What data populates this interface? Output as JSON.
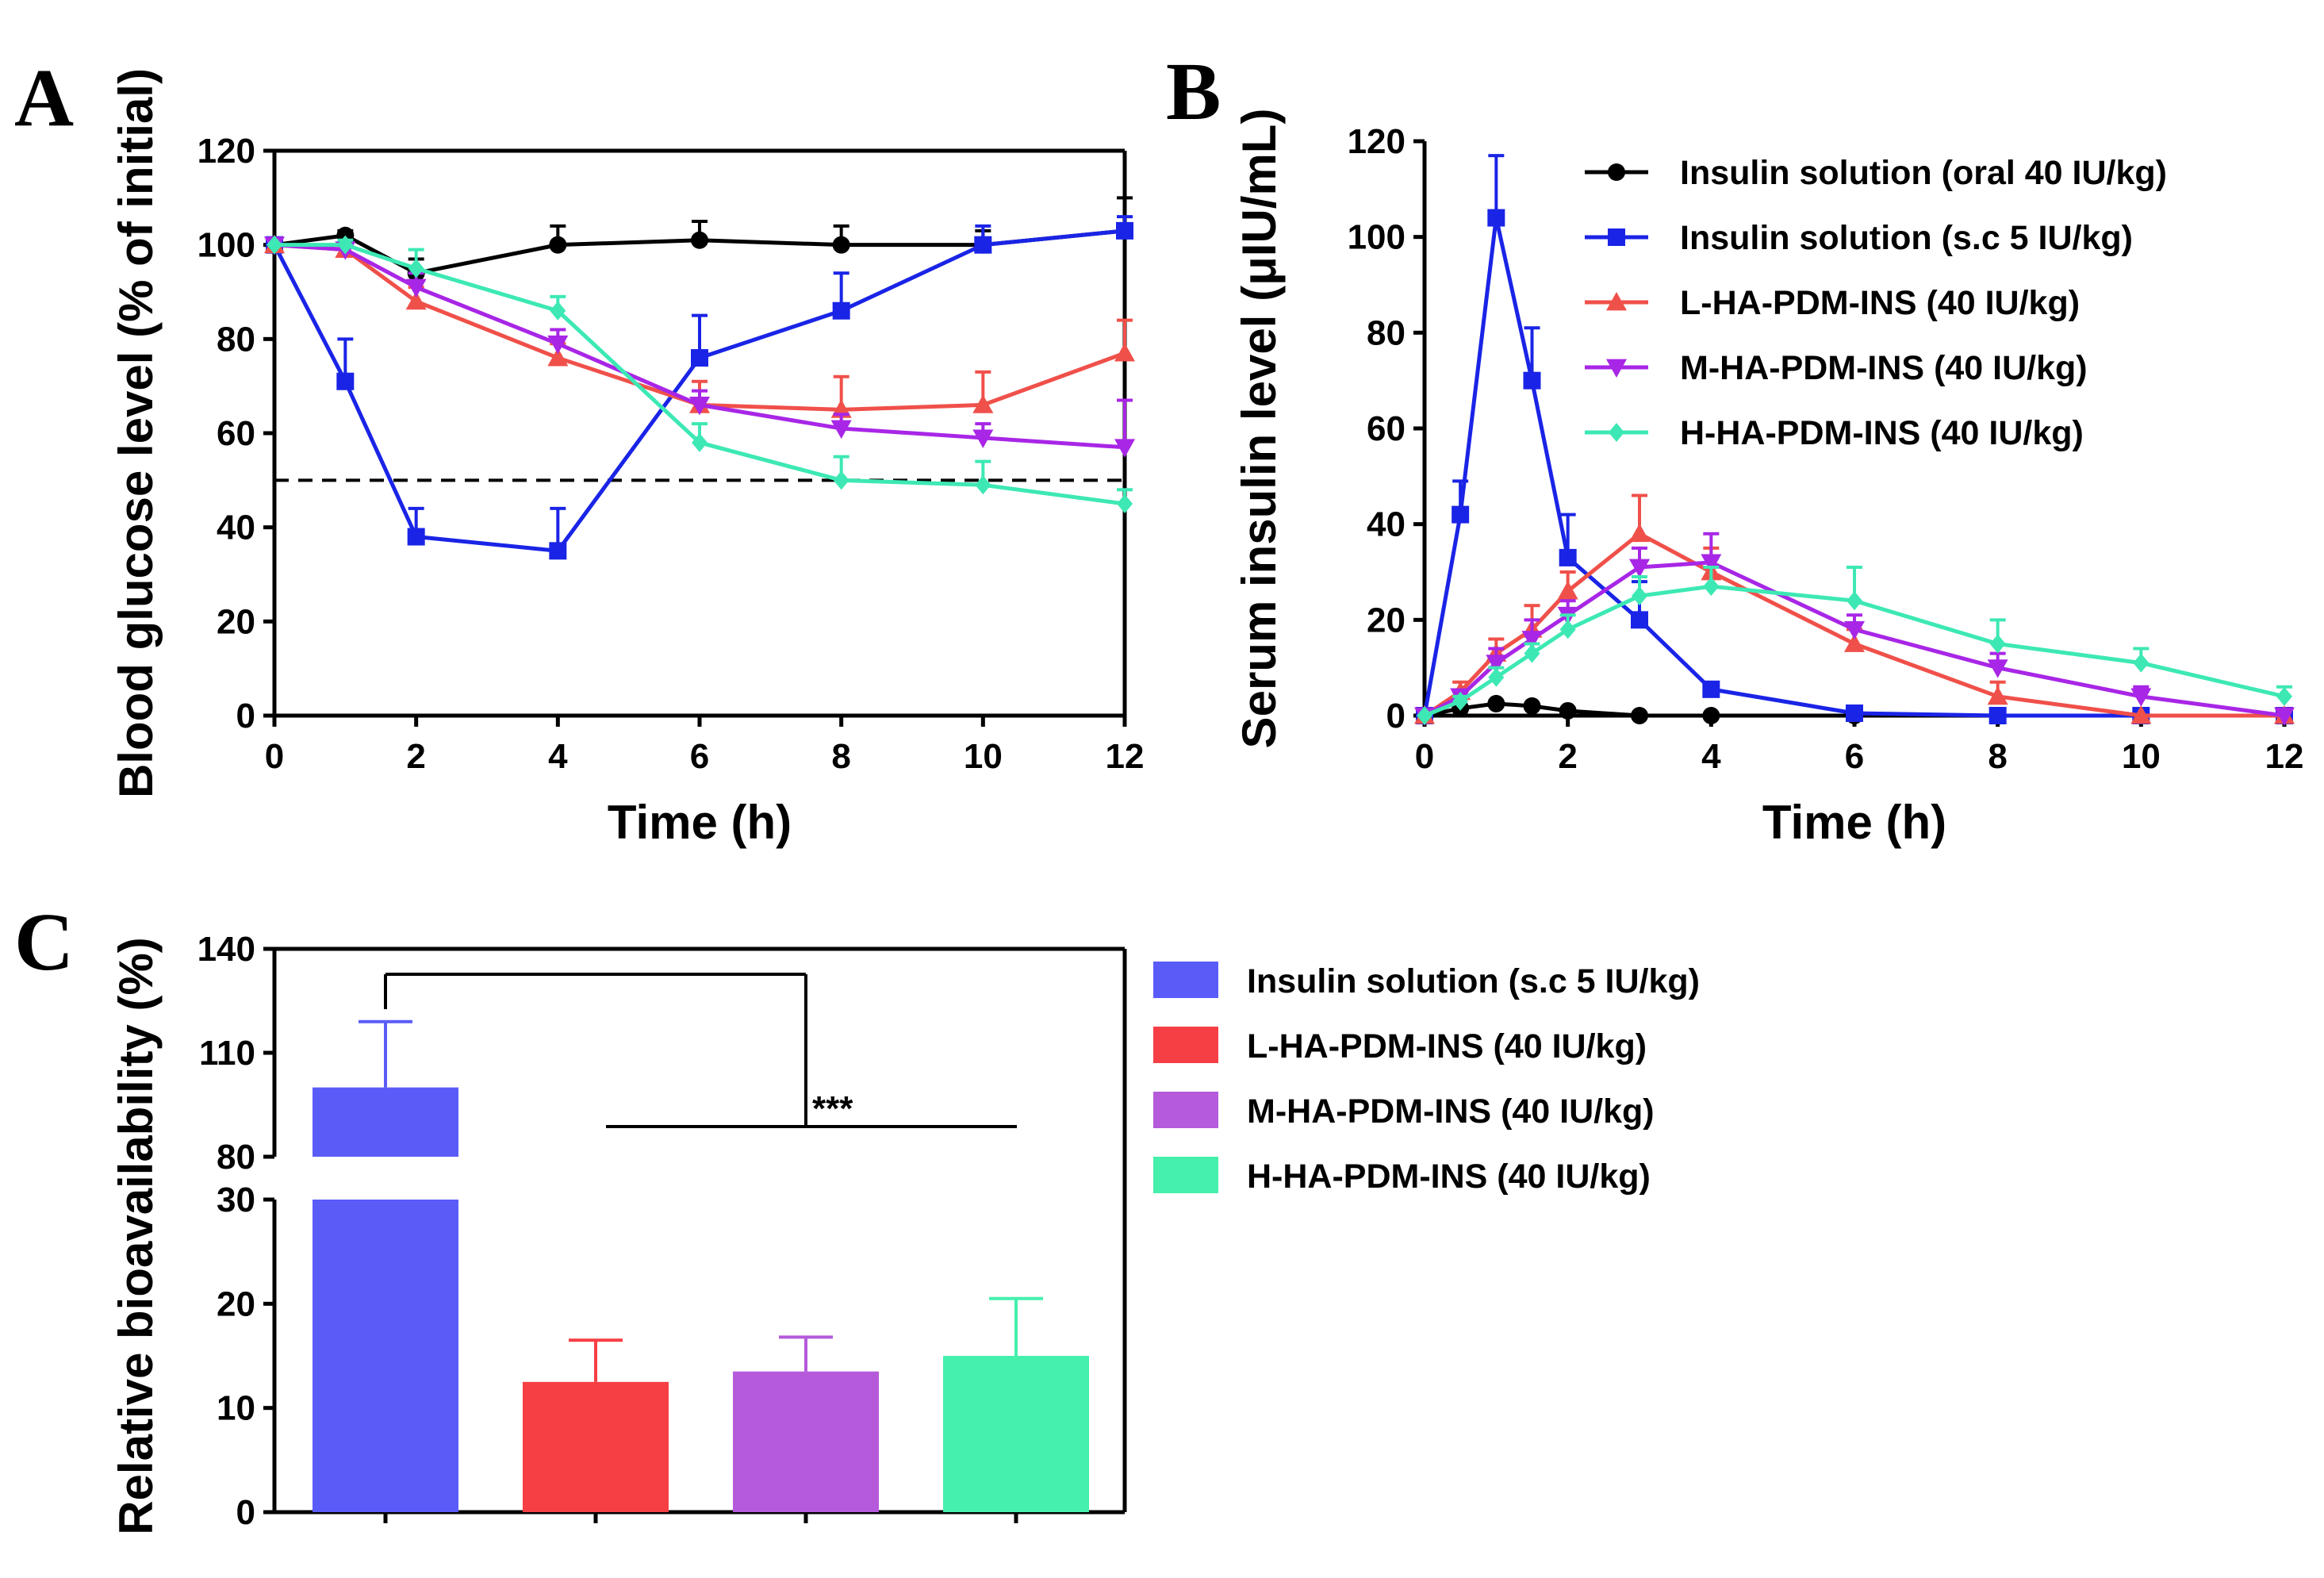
{
  "colors": {
    "oral": "#000000",
    "sc": "#1a24e6",
    "low": "#f0504a",
    "mid": "#a826e6",
    "high": "#3de8b4",
    "bar_sc": "#5a5cf8",
    "bar_low": "#f63f44",
    "bar_mid": "#b45adb",
    "bar_high": "#45f0ad"
  },
  "chart_data": [
    {
      "panel": "A",
      "type": "line",
      "xlabel": "Time (h)",
      "ylabel": "Blood glucose level (% of initial)",
      "xlim": [
        0,
        12
      ],
      "ylim": [
        0,
        120
      ],
      "xticks": [
        "0",
        "2",
        "4",
        "6",
        "8",
        "10",
        "12"
      ],
      "yticks": [
        "0",
        "20",
        "40",
        "60",
        "80",
        "100",
        "120"
      ],
      "reference_line": 50,
      "series": [
        {
          "name": "Insulin solution (oral 40 IU/kg)",
          "color": "#000000",
          "marker": "circle",
          "x": [
            0,
            1,
            2,
            4,
            6,
            8,
            10,
            12
          ],
          "y": [
            100,
            102,
            94,
            100,
            101,
            100,
            100,
            103
          ],
          "err": [
            0,
            1,
            3,
            4,
            4,
            4,
            3,
            7
          ]
        },
        {
          "name": "Insulin solution (s.c 5 IU/kg)",
          "color": "#1a24e6",
          "marker": "square",
          "x": [
            0,
            1,
            2,
            4,
            6,
            8,
            10,
            12
          ],
          "y": [
            100,
            71,
            38,
            35,
            76,
            86,
            100,
            103
          ],
          "err": [
            0,
            9,
            6,
            9,
            9,
            8,
            4,
            3
          ]
        },
        {
          "name": "L-HA-PDM-INS (40 IU/kg)",
          "color": "#f0504a",
          "marker": "triangle-up",
          "x": [
            0,
            1,
            2,
            4,
            6,
            8,
            10,
            12
          ],
          "y": [
            100,
            99,
            88,
            76,
            66,
            65,
            66,
            77
          ],
          "err": [
            0,
            1,
            3,
            3,
            5,
            7,
            7,
            7
          ]
        },
        {
          "name": "M-HA-PDM-INS (40 IU/kg)",
          "color": "#a826e6",
          "marker": "triangle-down",
          "x": [
            0,
            1,
            2,
            4,
            6,
            8,
            10,
            12
          ],
          "y": [
            100,
            99,
            91,
            79,
            66,
            61,
            59,
            57
          ],
          "err": [
            0,
            1,
            3,
            3,
            3,
            3,
            3,
            10
          ]
        },
        {
          "name": "H-HA-PDM-INS (40 IU/kg)",
          "color": "#3de8b4",
          "marker": "diamond",
          "x": [
            0,
            1,
            2,
            4,
            6,
            8,
            10,
            12
          ],
          "y": [
            100,
            100,
            95,
            86,
            58,
            50,
            49,
            45
          ],
          "err": [
            0,
            1,
            4,
            3,
            4,
            5,
            5,
            3
          ]
        }
      ]
    },
    {
      "panel": "B",
      "type": "line",
      "xlabel": "Time (h)",
      "ylabel": "Serum insulin level (μIU/mL)",
      "xlim": [
        0,
        12
      ],
      "ylim": [
        0,
        120
      ],
      "xticks": [
        "0",
        "2",
        "4",
        "6",
        "8",
        "10",
        "12"
      ],
      "yticks": [
        "0",
        "20",
        "40",
        "60",
        "80",
        "100",
        "120"
      ],
      "legend_position": "top-right",
      "series": [
        {
          "name": "Insulin solution (oral 40 IU/kg)",
          "color": "#000000",
          "marker": "circle",
          "x": [
            0,
            0.5,
            1,
            1.5,
            2,
            3,
            4,
            6,
            8,
            10,
            12
          ],
          "y": [
            0,
            1.5,
            2.5,
            2,
            1,
            0,
            0,
            0,
            0,
            0,
            0
          ],
          "err": [
            0,
            0,
            0,
            0,
            0,
            0,
            0,
            0,
            0,
            0,
            0
          ]
        },
        {
          "name": "Insulin solution (s.c 5 IU/kg)",
          "color": "#1a24e6",
          "marker": "square",
          "x": [
            0,
            0.5,
            1,
            1.5,
            2,
            3,
            4,
            6,
            8,
            10,
            12
          ],
          "y": [
            0,
            42,
            104,
            70,
            33,
            20,
            5.5,
            0.5,
            0,
            0,
            0
          ],
          "err": [
            0,
            7,
            13,
            11,
            9,
            8,
            0,
            0,
            0,
            0,
            0
          ]
        },
        {
          "name": "L-HA-PDM-INS (40 IU/kg)",
          "color": "#f0504a",
          "marker": "triangle-up",
          "x": [
            0,
            0.5,
            1,
            1.5,
            2,
            3,
            4,
            6,
            8,
            10,
            12
          ],
          "y": [
            0,
            5,
            13,
            18,
            26,
            38,
            30,
            15,
            4,
            0,
            0
          ],
          "err": [
            0,
            2,
            3,
            5,
            4,
            8,
            5,
            3,
            3,
            0,
            0
          ]
        },
        {
          "name": "M-HA-PDM-INS (40 IU/kg)",
          "color": "#a826e6",
          "marker": "triangle-down",
          "x": [
            0,
            0.5,
            1,
            1.5,
            2,
            3,
            4,
            6,
            8,
            10,
            12
          ],
          "y": [
            0,
            4,
            11,
            16,
            21,
            31,
            32,
            18,
            10,
            4,
            0
          ],
          "err": [
            0,
            1,
            3,
            4,
            3,
            4,
            6,
            3,
            3,
            2,
            0
          ]
        },
        {
          "name": "H-HA-PDM-INS (40 IU/kg)",
          "color": "#3de8b4",
          "marker": "diamond",
          "x": [
            0,
            0.5,
            1,
            1.5,
            2,
            3,
            4,
            6,
            8,
            10,
            12
          ],
          "y": [
            0,
            3,
            8,
            13,
            18,
            25,
            27,
            24,
            15,
            11,
            4
          ],
          "err": [
            0,
            1,
            2,
            2,
            3,
            4,
            4,
            7,
            5,
            3,
            2
          ]
        }
      ]
    },
    {
      "panel": "C",
      "type": "bar",
      "ylabel": "Relative bioavailability (%)",
      "ylim_lower": [
        0,
        30
      ],
      "ylim_upper": [
        80,
        140
      ],
      "yticks_lower": [
        "0",
        "10",
        "20",
        "30"
      ],
      "yticks_upper": [
        "80",
        "110",
        "140"
      ],
      "categories": [
        "Insulin solution (s.c 5 IU/kg)",
        "L-HA-PDM-INS (40 IU/kg)",
        "M-HA-PDM-INS (40 IU/kg)",
        "H-HA-PDM-INS (40 IU/kg)"
      ],
      "values": [
        100,
        12.5,
        13.5,
        15
      ],
      "errors": [
        19,
        4,
        3.3,
        5.5
      ],
      "bar_colors": [
        "#5a5cf8",
        "#f63f44",
        "#b45adb",
        "#45f0ad"
      ],
      "significance": "***"
    }
  ],
  "legend_b": [
    "Insulin solution (oral 40 IU/kg)",
    "Insulin solution (s.c 5 IU/kg)",
    "L-HA-PDM-INS (40 IU/kg)",
    "M-HA-PDM-INS (40 IU/kg)",
    "H-HA-PDM-INS (40 IU/kg)"
  ],
  "legend_c": [
    "Insulin solution (s.c 5 IU/kg)",
    "L-HA-PDM-INS (40 IU/kg)",
    "M-HA-PDM-INS (40 IU/kg)",
    "H-HA-PDM-INS (40 IU/kg)"
  ],
  "panel_labels": {
    "a": "A",
    "b": "B",
    "c": "C"
  }
}
